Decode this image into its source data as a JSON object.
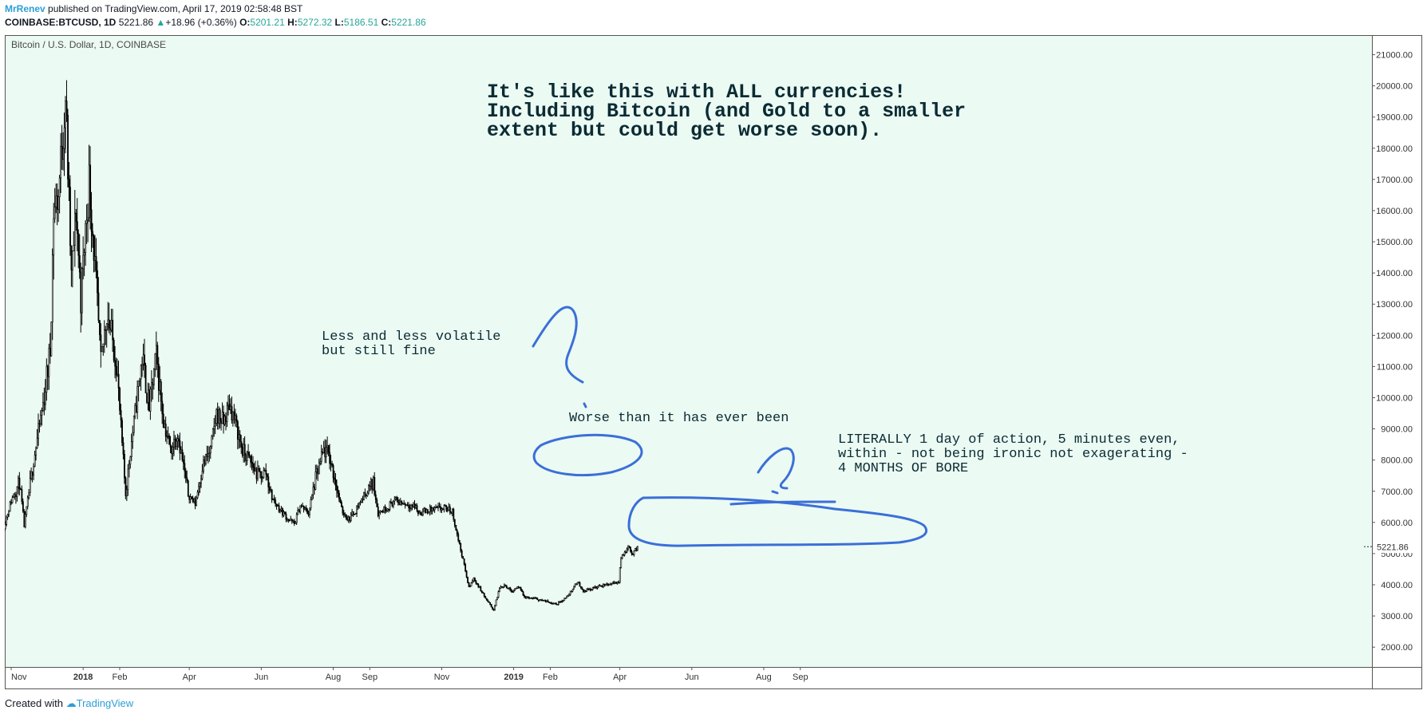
{
  "header": {
    "author": "MrRenev",
    "published": "published on TradingView.com, April 17, 2019 02:58:48 BST",
    "symbol": "COINBASE:BTCUSD, 1D",
    "last": "5221.86",
    "change_arrow": "▲",
    "change": "+18.96 (+0.36%)",
    "open_label": "O:",
    "open": "5201.21",
    "high_label": "H:",
    "high": "5272.32",
    "low_label": "L:",
    "low": "5186.51",
    "close_label": "C:",
    "close": "5221.86"
  },
  "footer": {
    "created_with": "Created with",
    "brand": "TradingView"
  },
  "colors": {
    "background": "#ebfaf3",
    "candles": "#000000",
    "annotation_ink": "#3b6fd8",
    "up": "#26a69a",
    "brand": "#2a9fd6"
  },
  "chart_data": {
    "type": "candlestick",
    "title": "Bitcoin / U.S. Dollar, 1D, COINBASE",
    "x_ticks": [
      "Nov",
      "2018",
      "Feb",
      "Apr",
      "Jun",
      "Aug",
      "Sep",
      "Nov",
      "2019",
      "Feb",
      "Apr",
      "Jun",
      "Aug",
      "Sep"
    ],
    "y_ticks": [
      "2000.00",
      "3000.00",
      "4000.00",
      "5000.00",
      "6000.00",
      "7000.00",
      "8000.00",
      "9000.00",
      "10000.00",
      "11000.00",
      "12000.00",
      "13000.00",
      "14000.00",
      "15000.00",
      "16000.00",
      "17000.00",
      "18000.00",
      "19000.00",
      "20000.00",
      "21000.00"
    ],
    "ylim": [
      1300,
      21600
    ],
    "last_price_label": "5221.86",
    "price_path": [
      [
        "2017-10-26",
        5900
      ],
      [
        "2017-11-01",
        6700
      ],
      [
        "2017-11-08",
        7300
      ],
      [
        "2017-11-12",
        5900
      ],
      [
        "2017-11-20",
        8000
      ],
      [
        "2017-11-28",
        9800
      ],
      [
        "2017-12-04",
        11500
      ],
      [
        "2017-12-07",
        16000
      ],
      [
        "2017-12-11",
        16500
      ],
      [
        "2017-12-17",
        19700
      ],
      [
        "2017-12-22",
        13800
      ],
      [
        "2017-12-26",
        16000
      ],
      [
        "2017-12-30",
        13200
      ],
      [
        "2018-01-06",
        17000
      ],
      [
        "2018-01-10",
        14800
      ],
      [
        "2018-01-16",
        11000
      ],
      [
        "2018-01-21",
        12800
      ],
      [
        "2018-01-29",
        11200
      ],
      [
        "2018-02-02",
        9000
      ],
      [
        "2018-02-06",
        6900
      ],
      [
        "2018-02-10",
        8300
      ],
      [
        "2018-02-16",
        10100
      ],
      [
        "2018-02-20",
        11300
      ],
      [
        "2018-02-26",
        9700
      ],
      [
        "2018-03-04",
        11300
      ],
      [
        "2018-03-10",
        9300
      ],
      [
        "2018-03-16",
        8300
      ],
      [
        "2018-03-22",
        8900
      ],
      [
        "2018-03-31",
        6900
      ],
      [
        "2018-04-06",
        6600
      ],
      [
        "2018-04-12",
        7800
      ],
      [
        "2018-04-19",
        8300
      ],
      [
        "2018-04-24",
        9500
      ],
      [
        "2018-04-30",
        9200
      ],
      [
        "2018-05-05",
        9800
      ],
      [
        "2018-05-10",
        9200
      ],
      [
        "2018-05-16",
        8300
      ],
      [
        "2018-05-22",
        8000
      ],
      [
        "2018-05-29",
        7500
      ],
      [
        "2018-06-05",
        7600
      ],
      [
        "2018-06-10",
        6800
      ],
      [
        "2018-06-15",
        6500
      ],
      [
        "2018-06-24",
        6100
      ],
      [
        "2018-06-29",
        5950
      ],
      [
        "2018-07-04",
        6550
      ],
      [
        "2018-07-11",
        6300
      ],
      [
        "2018-07-17",
        7400
      ],
      [
        "2018-07-24",
        8300
      ],
      [
        "2018-07-28",
        8200
      ],
      [
        "2018-08-03",
        7300
      ],
      [
        "2018-08-08",
        6400
      ],
      [
        "2018-08-14",
        6100
      ],
      [
        "2018-08-20",
        6400
      ],
      [
        "2018-08-26",
        6800
      ],
      [
        "2018-09-04",
        7300
      ],
      [
        "2018-09-08",
        6300
      ],
      [
        "2018-09-16",
        6500
      ],
      [
        "2018-09-22",
        6700
      ],
      [
        "2018-10-01",
        6600
      ],
      [
        "2018-10-10",
        6500
      ],
      [
        "2018-10-12",
        6300
      ],
      [
        "2018-10-22",
        6400
      ],
      [
        "2018-11-04",
        6450
      ],
      [
        "2018-11-10",
        6350
      ],
      [
        "2018-11-14",
        5600
      ],
      [
        "2018-11-19",
        4800
      ],
      [
        "2018-11-24",
        3900
      ],
      [
        "2018-11-28",
        4200
      ],
      [
        "2018-12-03",
        3900
      ],
      [
        "2018-12-09",
        3500
      ],
      [
        "2018-12-15",
        3200
      ],
      [
        "2018-12-20",
        3900
      ],
      [
        "2018-12-24",
        4000
      ],
      [
        "2018-12-30",
        3800
      ],
      [
        "2019-01-05",
        3950
      ],
      [
        "2019-01-10",
        3600
      ],
      [
        "2019-01-20",
        3550
      ],
      [
        "2019-01-30",
        3450
      ],
      [
        "2019-02-07",
        3400
      ],
      [
        "2019-02-15",
        3600
      ],
      [
        "2019-02-24",
        4100
      ],
      [
        "2019-03-01",
        3800
      ],
      [
        "2019-03-10",
        3900
      ],
      [
        "2019-03-20",
        4000
      ],
      [
        "2019-03-31",
        4100
      ],
      [
        "2019-04-02",
        4900
      ],
      [
        "2019-04-08",
        5200
      ],
      [
        "2019-04-12",
        5000
      ],
      [
        "2019-04-16",
        5221
      ]
    ],
    "annotations": [
      {
        "lines": [
          "It's like this with ALL currencies!",
          "Including Bitcoin (and Gold to a smaller",
          "extent but could get worse soon)."
        ]
      },
      {
        "lines": [
          "Less and less volatile",
          "but still fine"
        ]
      },
      {
        "lines": [
          "Worse than it has ever been"
        ]
      },
      {
        "lines": [
          "LITERALLY 1 day of action, 5 minutes even,",
          "within - not being ironic not exagerating -",
          "4 MONTHS OF BORE"
        ]
      }
    ]
  }
}
